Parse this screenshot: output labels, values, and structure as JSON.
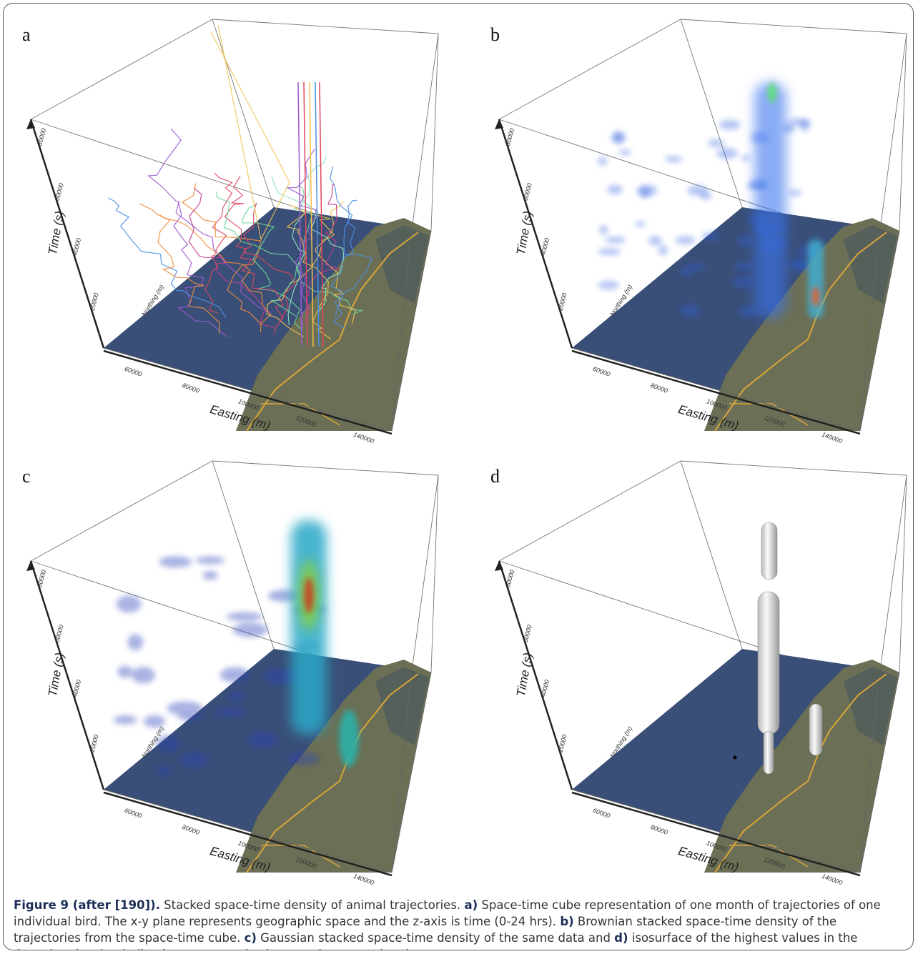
{
  "figure": {
    "panels": [
      {
        "label": "a",
        "axes": {
          "x_label": "Easting (m)",
          "y_label": "Northing (m)",
          "z_label": "Time (s)",
          "x_ticks": [
            "60000",
            "80000",
            "100000",
            "120000",
            "140000"
          ],
          "z_ticks": [
            "20000",
            "40000",
            "60000",
            "80000"
          ]
        }
      },
      {
        "label": "b",
        "axes": {
          "x_label": "Easting (m)",
          "y_label": "Northing (m)",
          "z_label": "Time (s)",
          "x_ticks": [
            "60000",
            "80000",
            "100000",
            "120000",
            "140000"
          ],
          "z_ticks": [
            "20000",
            "40000",
            "60000",
            "80000"
          ]
        }
      },
      {
        "label": "c",
        "axes": {
          "x_label": "Easting (m)",
          "y_label": "Northing (m)",
          "z_label": "Time (s)",
          "x_ticks": [
            "60000",
            "80000",
            "100000",
            "120000",
            "140000"
          ],
          "z_ticks": [
            "20000",
            "40000",
            "60000",
            "80000"
          ]
        }
      },
      {
        "label": "d",
        "axes": {
          "x_label": "Easting (m)",
          "y_label": "Northing (m)",
          "z_label": "Time (s)",
          "x_ticks": [
            "60000",
            "80000",
            "100000",
            "120000",
            "140000"
          ],
          "z_ticks": [
            "20000",
            "40000",
            "60000",
            "80000"
          ]
        }
      }
    ],
    "caption": [
      {
        "text": "Figure 9 (after [190]).",
        "bold": true
      },
      {
        "text": " Stacked space-time density of animal trajectories. ",
        "bold": false
      },
      {
        "text": "a)",
        "bold": true
      },
      {
        "text": " Space-time cube representation of one month of trajectories of one individual bird. The x-y plane represents geographic space and the z-axis is time (0-24 hrs). ",
        "bold": false
      },
      {
        "text": "b)",
        "bold": true
      },
      {
        "text": " Brownian stacked space-time density of the trajectories from the space-time cube. ",
        "bold": false
      },
      {
        "text": "c)",
        "bold": true
      },
      {
        "text": " Gaussian stacked space-time density of the same data and ",
        "bold": false
      },
      {
        "text": "d)",
        "bold": true
      },
      {
        "text": " isosurface of the highest values in the Gaussian density, indicating a temporal column and a space-time hotspot.",
        "bold": false
      }
    ]
  }
}
